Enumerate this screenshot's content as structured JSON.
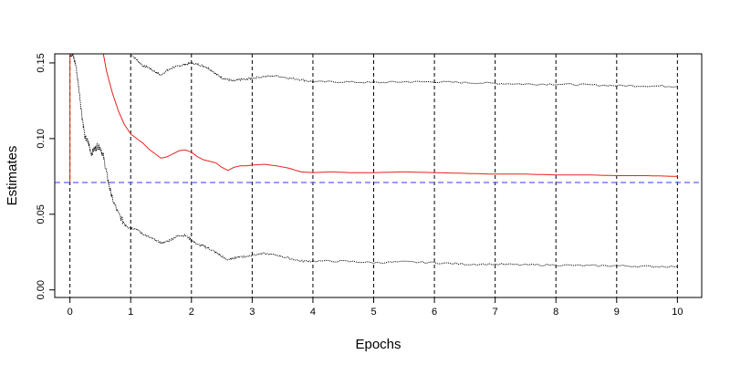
{
  "chart_data": {
    "type": "line",
    "title": "",
    "xlabel": "Epochs",
    "ylabel": "Estimates",
    "xlim": [
      -0.25,
      10.4
    ],
    "ylim": [
      -0.005,
      0.156
    ],
    "x_ticks": [
      0,
      1,
      2,
      3,
      4,
      5,
      6,
      7,
      8,
      9,
      10
    ],
    "x_tick_labels": [
      "0",
      "1",
      "2",
      "3",
      "4",
      "5",
      "6",
      "7",
      "8",
      "9",
      "10"
    ],
    "y_ticks": [
      0.0,
      0.05,
      0.1,
      0.15
    ],
    "y_tick_labels": [
      "0.00",
      "0.05",
      "0.10",
      "0.15"
    ],
    "grid": "vertical dashed lines at each epoch",
    "legend": "none",
    "reference_line": {
      "y": 0.071,
      "color": "#5f5fff",
      "style": "dashed"
    },
    "series": [
      {
        "role": "estimate",
        "color": "#e8211f",
        "style": "solid",
        "x": [
          0.55,
          0.6,
          0.7,
          0.8,
          0.9,
          1.0,
          1.1,
          1.2,
          1.3,
          1.4,
          1.5,
          1.6,
          1.7,
          1.8,
          1.9,
          2.0,
          2.1,
          2.2,
          2.3,
          2.4,
          2.5,
          2.6,
          2.7,
          2.8,
          2.9,
          3.0,
          3.2,
          3.4,
          3.6,
          3.8,
          4.0,
          4.3,
          4.6,
          5.0,
          5.5,
          6.0,
          6.5,
          7.0,
          7.5,
          8.0,
          8.5,
          9.0,
          9.5,
          10.0
        ],
        "y": [
          0.156,
          0.145,
          0.13,
          0.118,
          0.109,
          0.103,
          0.1,
          0.097,
          0.093,
          0.09,
          0.087,
          0.088,
          0.09,
          0.092,
          0.0925,
          0.091,
          0.088,
          0.086,
          0.085,
          0.084,
          0.081,
          0.079,
          0.081,
          0.082,
          0.082,
          0.0825,
          0.083,
          0.082,
          0.0805,
          0.078,
          0.0775,
          0.078,
          0.0775,
          0.0775,
          0.078,
          0.0775,
          0.077,
          0.0765,
          0.0765,
          0.076,
          0.076,
          0.0755,
          0.0755,
          0.075
        ]
      },
      {
        "role": "upper bound",
        "color": "#000000",
        "style": "dotted",
        "x": [
          1.0,
          1.1,
          1.2,
          1.3,
          1.4,
          1.5,
          1.6,
          1.7,
          1.8,
          1.9,
          2.0,
          2.1,
          2.2,
          2.3,
          2.4,
          2.5,
          2.6,
          2.7,
          2.8,
          2.9,
          3.0,
          3.2,
          3.4,
          3.6,
          3.8,
          4.0,
          4.5,
          5.0,
          5.5,
          6.0,
          6.5,
          7.0,
          7.5,
          8.0,
          8.5,
          9.0,
          9.5,
          10.0
        ],
        "y": [
          0.156,
          0.152,
          0.148,
          0.147,
          0.144,
          0.142,
          0.145,
          0.147,
          0.148,
          0.149,
          0.15,
          0.149,
          0.148,
          0.146,
          0.143,
          0.14,
          0.139,
          0.138,
          0.139,
          0.139,
          0.14,
          0.141,
          0.1415,
          0.14,
          0.139,
          0.1375,
          0.1375,
          0.137,
          0.1375,
          0.1375,
          0.137,
          0.1365,
          0.136,
          0.136,
          0.1355,
          0.135,
          0.1348,
          0.1345
        ]
      },
      {
        "role": "lower bound",
        "color": "#000000",
        "style": "dotted",
        "x": [
          0.0,
          0.05,
          0.1,
          0.15,
          0.2,
          0.25,
          0.3,
          0.35,
          0.4,
          0.45,
          0.5,
          0.55,
          0.6,
          0.65,
          0.7,
          0.8,
          0.9,
          1.0,
          1.1,
          1.2,
          1.3,
          1.4,
          1.5,
          1.6,
          1.7,
          1.8,
          1.9,
          2.0,
          2.1,
          2.2,
          2.3,
          2.4,
          2.5,
          2.6,
          2.7,
          2.8,
          2.9,
          3.0,
          3.2,
          3.4,
          3.6,
          3.8,
          4.0,
          4.5,
          5.0,
          5.5,
          6.0,
          6.5,
          7.0,
          7.5,
          8.0,
          8.5,
          9.0,
          9.5,
          10.0
        ],
        "y": [
          0.156,
          0.155,
          0.148,
          0.132,
          0.115,
          0.1,
          0.098,
          0.09,
          0.093,
          0.095,
          0.094,
          0.088,
          0.078,
          0.068,
          0.06,
          0.05,
          0.044,
          0.041,
          0.04,
          0.037,
          0.035,
          0.033,
          0.031,
          0.032,
          0.034,
          0.036,
          0.036,
          0.033,
          0.03,
          0.029,
          0.027,
          0.025,
          0.022,
          0.02,
          0.021,
          0.022,
          0.022,
          0.023,
          0.024,
          0.023,
          0.021,
          0.019,
          0.019,
          0.019,
          0.018,
          0.0185,
          0.018,
          0.017,
          0.017,
          0.0165,
          0.0165,
          0.016,
          0.016,
          0.0155,
          0.0155
        ]
      }
    ]
  }
}
